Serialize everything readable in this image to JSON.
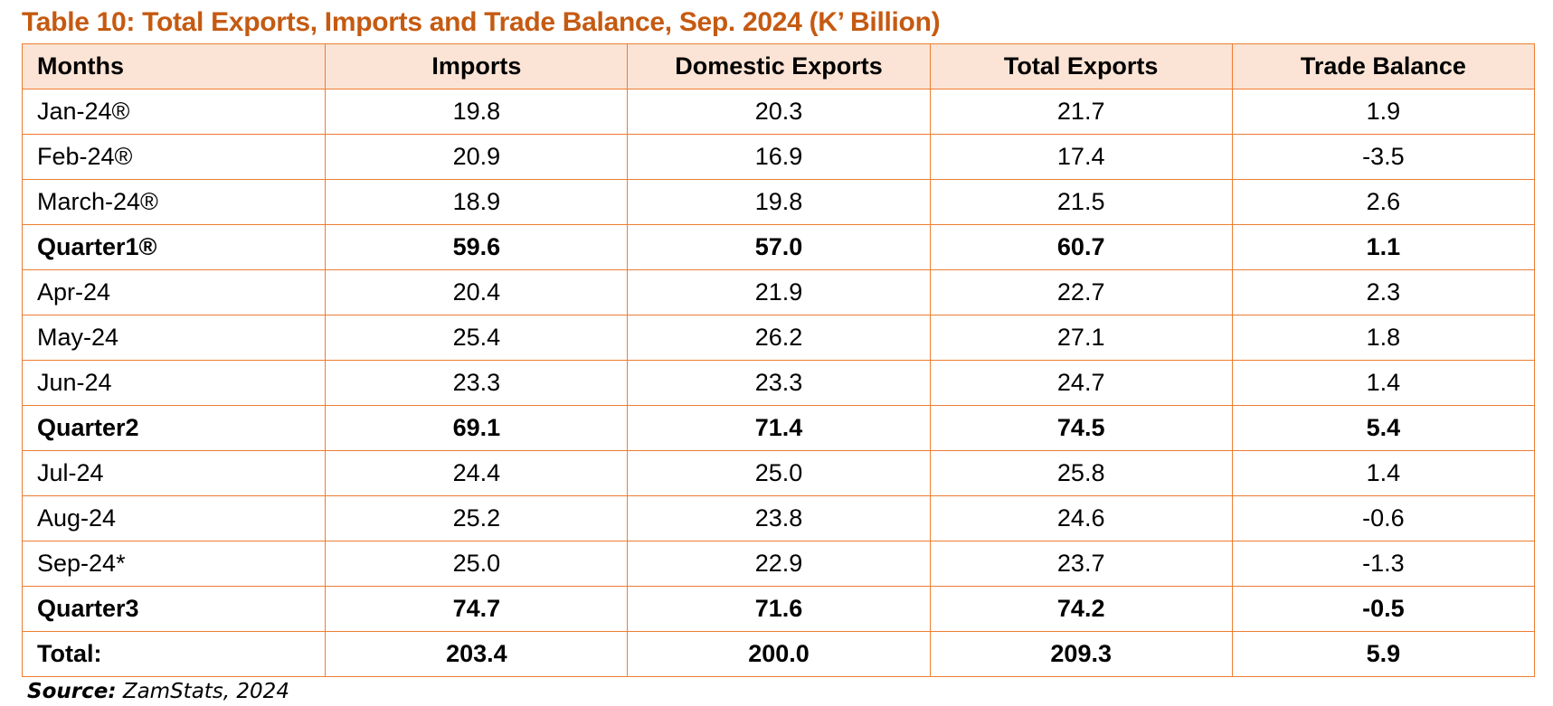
{
  "title": "Table 10: Total Exports, Imports and Trade Balance, Sep. 2024 (K’ Billion)",
  "colors": {
    "title": "#c55a11",
    "border": "#ed7d31",
    "header_bg": "#fbe4d5"
  },
  "table": {
    "headers": [
      "Months",
      "Imports",
      "Domestic Exports",
      "Total Exports",
      "Trade Balance"
    ],
    "rows": [
      {
        "month": "Jan-24®",
        "imports": "19.8",
        "domestic_exports": "20.3",
        "total_exports": "21.7",
        "trade_balance": "1.9",
        "bold": false
      },
      {
        "month": "Feb-24®",
        "imports": "20.9",
        "domestic_exports": "16.9",
        "total_exports": "17.4",
        "trade_balance": "-3.5",
        "bold": false
      },
      {
        "month": "March-24®",
        "imports": "18.9",
        "domestic_exports": "19.8",
        "total_exports": "21.5",
        "trade_balance": "2.6",
        "bold": false
      },
      {
        "month": "Quarter1®",
        "imports": "59.6",
        "domestic_exports": "57.0",
        "total_exports": "60.7",
        "trade_balance": "1.1",
        "bold": true
      },
      {
        "month": "Apr-24",
        "imports": "20.4",
        "domestic_exports": "21.9",
        "total_exports": "22.7",
        "trade_balance": "2.3",
        "bold": false
      },
      {
        "month": "May-24",
        "imports": "25.4",
        "domestic_exports": "26.2",
        "total_exports": "27.1",
        "trade_balance": "1.8",
        "bold": false
      },
      {
        "month": "Jun-24",
        "imports": "23.3",
        "domestic_exports": "23.3",
        "total_exports": "24.7",
        "trade_balance": "1.4",
        "bold": false
      },
      {
        "month": "Quarter2",
        "imports": "69.1",
        "domestic_exports": "71.4",
        "total_exports": "74.5",
        "trade_balance": "5.4",
        "bold": true
      },
      {
        "month": "Jul-24",
        "imports": "24.4",
        "domestic_exports": "25.0",
        "total_exports": "25.8",
        "trade_balance": "1.4",
        "bold": false
      },
      {
        "month": "Aug-24",
        "imports": "25.2",
        "domestic_exports": "23.8",
        "total_exports": "24.6",
        "trade_balance": "-0.6",
        "bold": false
      },
      {
        "month": "Sep-24*",
        "imports": "25.0",
        "domestic_exports": "22.9",
        "total_exports": "23.7",
        "trade_balance": "-1.3",
        "bold": false
      },
      {
        "month": "Quarter3",
        "imports": "74.7",
        "domestic_exports": "71.6",
        "total_exports": "74.2",
        "trade_balance": "-0.5",
        "bold": true
      },
      {
        "month": "Total:",
        "imports": "203.4",
        "domestic_exports": "200.0",
        "total_exports": "209.3",
        "trade_balance": "5.9",
        "bold": true
      }
    ]
  },
  "source": {
    "label": "Source:",
    "text": " ZamStats, 2024"
  }
}
